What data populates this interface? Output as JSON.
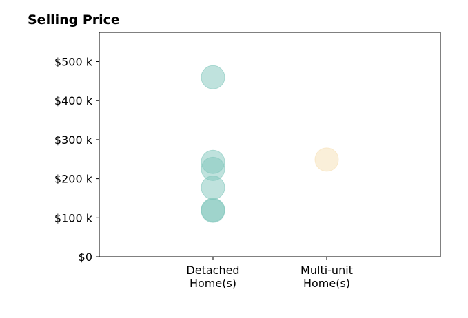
{
  "chart_data": {
    "type": "scatter",
    "title": "Selling Price",
    "xlabel": "",
    "ylabel": "",
    "categories": [
      "Detached Home(s)",
      "Multi-unit Home(s)"
    ],
    "category_tick_lines": [
      [
        "Detached",
        "Home(s)"
      ],
      [
        "Multi-unit",
        "Home(s)"
      ]
    ],
    "xlim": [
      -1,
      2
    ],
    "ylim": [
      0,
      575000
    ],
    "yticks": [
      0,
      100000,
      200000,
      300000,
      400000,
      500000
    ],
    "ytick_labels": [
      "$0",
      "$100 k",
      "$200 k",
      "$300 k",
      "$400 k",
      "$500 k"
    ],
    "grid": false,
    "series": [
      {
        "category": "Detached Home(s)",
        "color": "#7fc6bb",
        "values": [
          460000,
          243000,
          225000,
          177000,
          120000,
          118000
        ]
      },
      {
        "category": "Multi-unit Home(s)",
        "color": "#f6dfb4",
        "values": [
          249000
        ]
      }
    ]
  }
}
